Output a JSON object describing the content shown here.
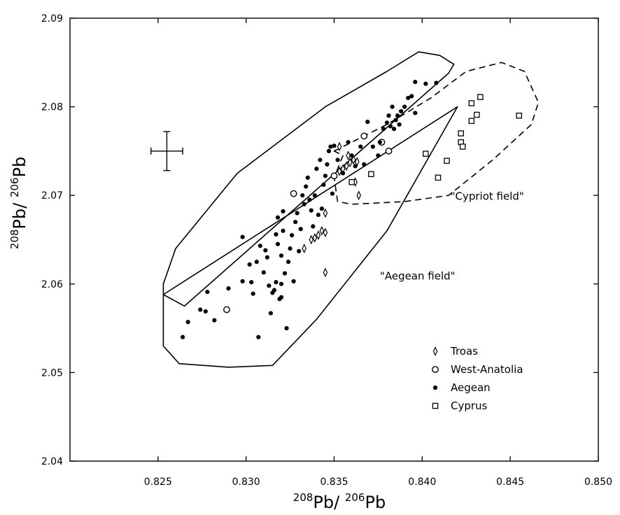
{
  "chart_data": {
    "type": "scatter",
    "xlabel_parts": [
      "208",
      "Pb/ ",
      "206",
      "Pb"
    ],
    "ylabel_parts": [
      "208",
      "Pb/ ",
      "206",
      "Pb"
    ],
    "xlim": [
      0.82,
      0.85
    ],
    "ylim": [
      2.04,
      2.09
    ],
    "x_ticks": [
      0.825,
      0.83,
      0.835,
      0.84,
      0.845,
      0.85
    ],
    "x_tick_labels": [
      "0.825",
      "0.830",
      "0.835",
      "0.840",
      "0.845",
      "0.850"
    ],
    "y_ticks": [
      2.04,
      2.05,
      2.06,
      2.07,
      2.08,
      2.09
    ],
    "y_tick_labels": [
      "2.04",
      "2.05",
      "2.06",
      "2.07",
      "2.08",
      "2.09"
    ],
    "grid": false,
    "legend_position": "bottom-right",
    "error_bar": {
      "x": 0.8255,
      "y": 2.075,
      "x_err": 0.0009,
      "y_err": 0.0022
    },
    "annotations": [
      {
        "text": "\"Aegean field\"",
        "x": 0.8376,
        "y": 2.0605
      },
      {
        "text": "\"Cypriot field\"",
        "x": 0.8416,
        "y": 2.0695
      }
    ],
    "fields": [
      {
        "id": "aegean",
        "style": "solid",
        "points": [
          [
            0.8253,
            2.0588
          ],
          [
            0.8265,
            2.0575
          ],
          [
            0.8415,
            2.0838
          ],
          [
            0.8418,
            2.0848
          ],
          [
            0.841,
            2.0858
          ],
          [
            0.8398,
            2.0862
          ],
          [
            0.838,
            2.084
          ],
          [
            0.8345,
            2.08
          ],
          [
            0.8295,
            2.0725
          ],
          [
            0.826,
            2.064
          ],
          [
            0.8253,
            2.06
          ],
          [
            0.8253,
            2.053
          ],
          [
            0.8262,
            2.051
          ],
          [
            0.829,
            2.0506
          ],
          [
            0.8315,
            2.0508
          ],
          [
            0.834,
            2.056
          ],
          [
            0.838,
            2.066
          ],
          [
            0.842,
            2.08
          ]
        ]
      },
      {
        "id": "cypriot",
        "style": "dashed",
        "points": [
          [
            0.835,
            2.075
          ],
          [
            0.838,
            2.078
          ],
          [
            0.8405,
            2.081
          ],
          [
            0.8425,
            2.084
          ],
          [
            0.8445,
            2.085
          ],
          [
            0.8458,
            2.084
          ],
          [
            0.8466,
            2.0805
          ],
          [
            0.8462,
            2.078
          ],
          [
            0.844,
            2.074
          ],
          [
            0.8415,
            2.07
          ],
          [
            0.839,
            2.0693
          ],
          [
            0.836,
            2.069
          ],
          [
            0.8352,
            2.0693
          ],
          [
            0.835,
            2.072
          ],
          [
            0.8355,
            2.0745
          ]
        ]
      }
    ],
    "series": [
      {
        "name": "Troas",
        "marker": "diamond",
        "points": [
          [
            0.8345,
            2.0613
          ],
          [
            0.8333,
            2.064
          ],
          [
            0.8337,
            2.065
          ],
          [
            0.8339,
            2.0652
          ],
          [
            0.8341,
            2.0655
          ],
          [
            0.8343,
            2.066
          ],
          [
            0.8345,
            2.0658
          ],
          [
            0.8345,
            2.068
          ],
          [
            0.8353,
            2.0727
          ],
          [
            0.8355,
            2.073
          ],
          [
            0.8357,
            2.0733
          ],
          [
            0.8359,
            2.0737
          ],
          [
            0.8361,
            2.074
          ],
          [
            0.8363,
            2.0738
          ],
          [
            0.8358,
            2.0745
          ],
          [
            0.8362,
            2.0715
          ],
          [
            0.8364,
            2.07
          ],
          [
            0.8353,
            2.0755
          ]
        ]
      },
      {
        "name": "West-Anatolia",
        "marker": "circle",
        "points": [
          [
            0.8289,
            2.0571
          ],
          [
            0.8327,
            2.0702
          ],
          [
            0.835,
            2.0722
          ],
          [
            0.8367,
            2.0767
          ],
          [
            0.8377,
            2.076
          ],
          [
            0.8381,
            2.075
          ]
        ]
      },
      {
        "name": "Aegean",
        "marker": "dot",
        "points": [
          [
            0.8264,
            2.054
          ],
          [
            0.8267,
            2.0557
          ],
          [
            0.8274,
            2.0571
          ],
          [
            0.8278,
            2.0591
          ],
          [
            0.8282,
            2.0559
          ],
          [
            0.8277,
            2.0569
          ],
          [
            0.829,
            2.0595
          ],
          [
            0.8298,
            2.0603
          ],
          [
            0.8298,
            2.0653
          ],
          [
            0.8302,
            2.0622
          ],
          [
            0.8303,
            2.0602
          ],
          [
            0.8304,
            2.0589
          ],
          [
            0.8306,
            2.0625
          ],
          [
            0.8307,
            2.054
          ],
          [
            0.8308,
            2.0643
          ],
          [
            0.831,
            2.0613
          ],
          [
            0.8311,
            2.0638
          ],
          [
            0.8312,
            2.063
          ],
          [
            0.8313,
            2.0598
          ],
          [
            0.8314,
            2.0567
          ],
          [
            0.8315,
            2.059
          ],
          [
            0.8316,
            2.0593
          ],
          [
            0.8317,
            2.0602
          ],
          [
            0.8317,
            2.0656
          ],
          [
            0.8318,
            2.0645
          ],
          [
            0.8318,
            2.0675
          ],
          [
            0.8319,
            2.0583
          ],
          [
            0.832,
            2.06
          ],
          [
            0.832,
            2.0632
          ],
          [
            0.832,
            2.0585
          ],
          [
            0.8321,
            2.066
          ],
          [
            0.8321,
            2.0682
          ],
          [
            0.8322,
            2.0612
          ],
          [
            0.8323,
            2.055
          ],
          [
            0.8324,
            2.0625
          ],
          [
            0.8325,
            2.064
          ],
          [
            0.8326,
            2.0655
          ],
          [
            0.8327,
            2.0603
          ],
          [
            0.8328,
            2.067
          ],
          [
            0.8329,
            2.068
          ],
          [
            0.833,
            2.0637
          ],
          [
            0.8331,
            2.0662
          ],
          [
            0.8332,
            2.07
          ],
          [
            0.8333,
            2.069
          ],
          [
            0.8334,
            2.071
          ],
          [
            0.8335,
            2.072
          ],
          [
            0.8336,
            2.0695
          ],
          [
            0.8337,
            2.0683
          ],
          [
            0.8338,
            2.0665
          ],
          [
            0.8339,
            2.07
          ],
          [
            0.834,
            2.073
          ],
          [
            0.8341,
            2.0678
          ],
          [
            0.8342,
            2.074
          ],
          [
            0.8343,
            2.0685
          ],
          [
            0.8344,
            2.0712
          ],
          [
            0.8345,
            2.0722
          ],
          [
            0.8346,
            2.0735
          ],
          [
            0.8347,
            2.075
          ],
          [
            0.8348,
            2.0755
          ],
          [
            0.8349,
            2.0702
          ],
          [
            0.835,
            2.0756
          ],
          [
            0.8352,
            2.074
          ],
          [
            0.8355,
            2.0725
          ],
          [
            0.8358,
            2.076
          ],
          [
            0.836,
            2.0745
          ],
          [
            0.8362,
            2.0733
          ],
          [
            0.8365,
            2.0755
          ],
          [
            0.8367,
            2.0735
          ],
          [
            0.8369,
            2.0783
          ],
          [
            0.8372,
            2.0755
          ],
          [
            0.8375,
            2.0745
          ],
          [
            0.8376,
            2.076
          ],
          [
            0.8378,
            2.0775
          ],
          [
            0.838,
            2.0782
          ],
          [
            0.8381,
            2.079
          ],
          [
            0.8382,
            2.0778
          ],
          [
            0.8383,
            2.08
          ],
          [
            0.8384,
            2.0775
          ],
          [
            0.8385,
            2.0785
          ],
          [
            0.8386,
            2.079
          ],
          [
            0.8387,
            2.078
          ],
          [
            0.8388,
            2.0795
          ],
          [
            0.839,
            2.08
          ],
          [
            0.8392,
            2.081
          ],
          [
            0.8394,
            2.0812
          ],
          [
            0.8396,
            2.0793
          ],
          [
            0.8396,
            2.0828
          ],
          [
            0.8402,
            2.0826
          ],
          [
            0.8408,
            2.0827
          ]
        ]
      },
      {
        "name": "Cyprus",
        "marker": "square",
        "points": [
          [
            0.8371,
            2.0724
          ],
          [
            0.836,
            2.0715
          ],
          [
            0.8402,
            2.0747
          ],
          [
            0.8409,
            2.072
          ],
          [
            0.8414,
            2.0739
          ],
          [
            0.8422,
            2.077
          ],
          [
            0.8422,
            2.076
          ],
          [
            0.8423,
            2.0755
          ],
          [
            0.8428,
            2.0804
          ],
          [
            0.8428,
            2.0784
          ],
          [
            0.8431,
            2.0791
          ],
          [
            0.8433,
            2.0811
          ],
          [
            0.8455,
            2.079
          ]
        ]
      }
    ]
  }
}
